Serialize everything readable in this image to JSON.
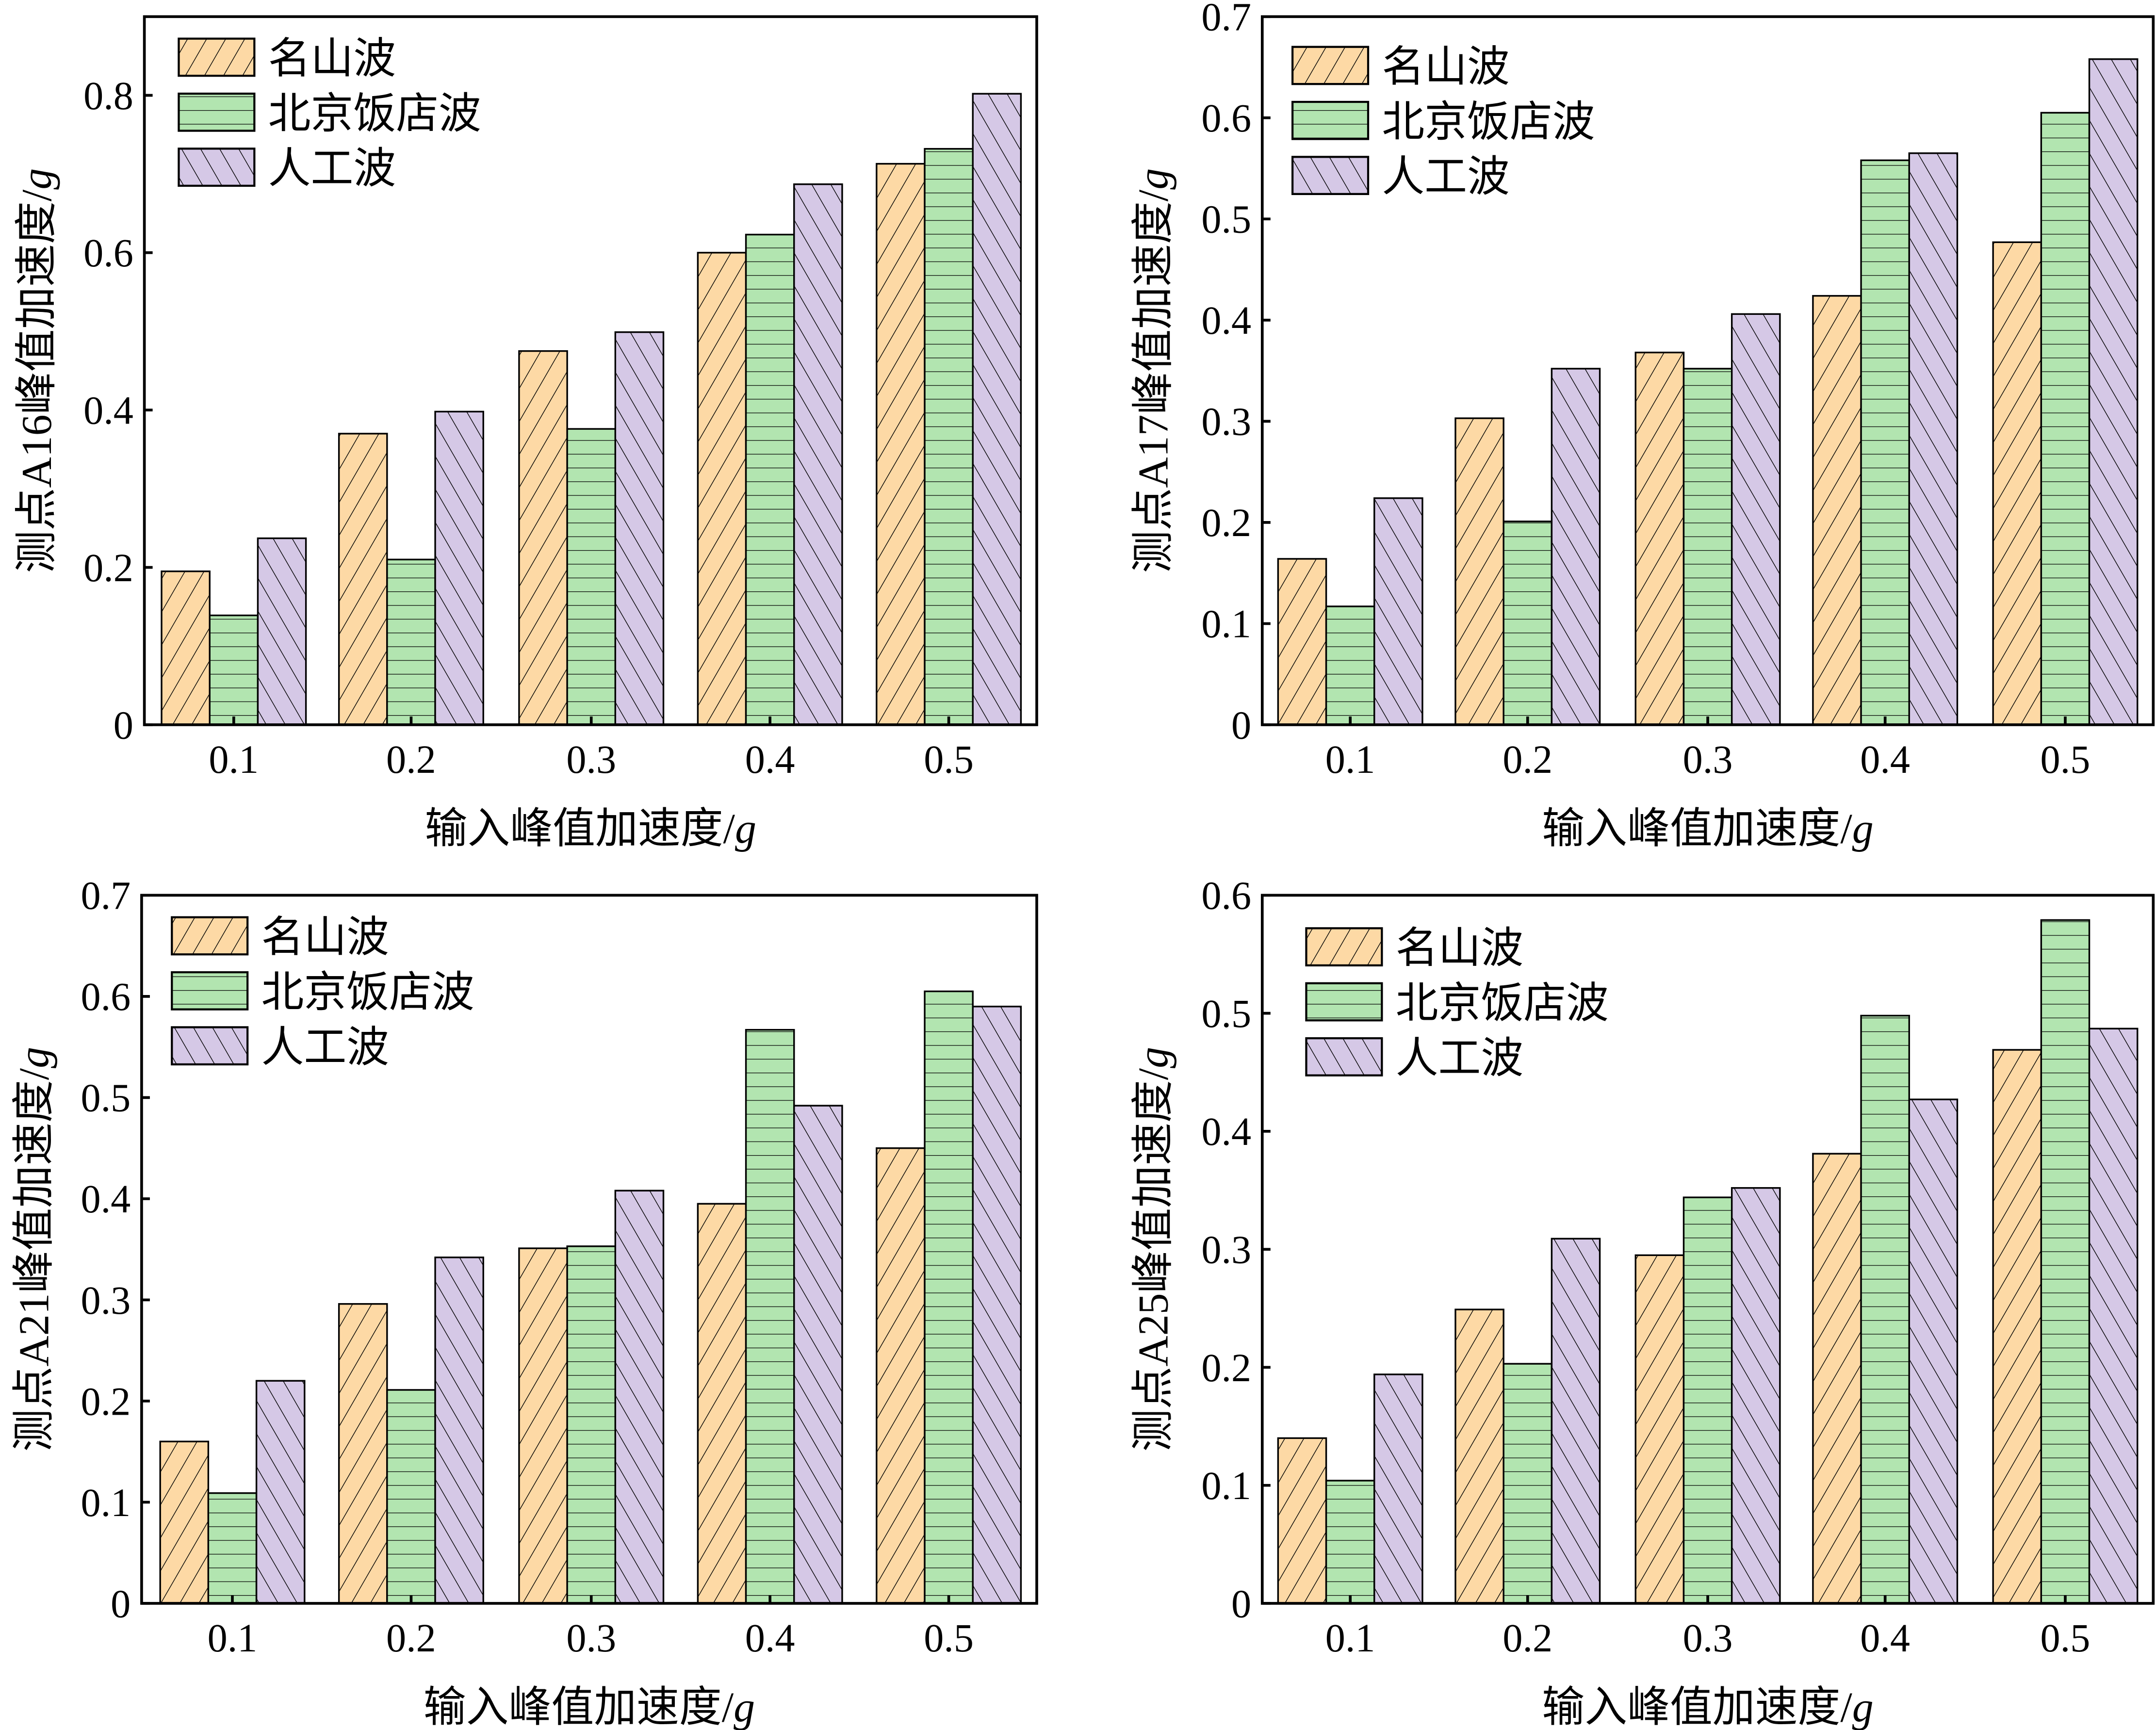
{
  "colors": {
    "名山波": "#FDD9A5",
    "北京饭店波": "#B2E5B0",
    "人工波": "#D5C8E6"
  },
  "chart_data": [
    {
      "type": "bar",
      "ylabel": "测点A16峰值加速度/g",
      "xlabel": "输入峰值加速度/g",
      "categories": [
        "0.1",
        "0.2",
        "0.3",
        "0.4",
        "0.5"
      ],
      "ylim": [
        0,
        0.9
      ],
      "yticks": [
        "0",
        "0.2",
        "0.4",
        "0.6",
        "0.8"
      ],
      "legend_position": "top-left",
      "series": [
        {
          "name": "名山波",
          "values": [
            0.195,
            0.37,
            0.475,
            0.6,
            0.713
          ]
        },
        {
          "name": "北京饭店波",
          "values": [
            0.139,
            0.21,
            0.376,
            0.623,
            0.732
          ]
        },
        {
          "name": "人工波",
          "values": [
            0.237,
            0.398,
            0.499,
            0.687,
            0.802
          ]
        }
      ]
    },
    {
      "type": "bar",
      "ylabel": "测点A17峰值加速度/g",
      "xlabel": "输入峰值加速度/g",
      "categories": [
        "0.1",
        "0.2",
        "0.3",
        "0.4",
        "0.5"
      ],
      "ylim": [
        0,
        0.7
      ],
      "yticks": [
        "0",
        "0.1",
        "0.2",
        "0.3",
        "0.4",
        "0.5",
        "0.6",
        "0.7"
      ],
      "legend_position": "top-left",
      "series": [
        {
          "name": "名山波",
          "values": [
            0.164,
            0.303,
            0.368,
            0.424,
            0.477
          ]
        },
        {
          "name": "北京饭店波",
          "values": [
            0.117,
            0.201,
            0.352,
            0.558,
            0.605
          ]
        },
        {
          "name": "人工波",
          "values": [
            0.224,
            0.352,
            0.406,
            0.565,
            0.658
          ]
        }
      ]
    },
    {
      "type": "bar",
      "ylabel": "测点A21峰值加速度/g",
      "xlabel": "输入峰值加速度/g",
      "categories": [
        "0.1",
        "0.2",
        "0.3",
        "0.4",
        "0.5"
      ],
      "ylim": [
        0,
        0.7
      ],
      "yticks": [
        "0",
        "0.1",
        "0.2",
        "0.3",
        "0.4",
        "0.5",
        "0.6",
        "0.7"
      ],
      "legend_position": "top-left",
      "series": [
        {
          "name": "名山波",
          "values": [
            0.16,
            0.296,
            0.351,
            0.395,
            0.45
          ]
        },
        {
          "name": "北京饭店波",
          "values": [
            0.109,
            0.211,
            0.353,
            0.567,
            0.605
          ]
        },
        {
          "name": "人工波",
          "values": [
            0.22,
            0.342,
            0.408,
            0.492,
            0.59
          ]
        }
      ]
    },
    {
      "type": "bar",
      "ylabel": "测点A25峰值加速度/g",
      "xlabel": "输入峰值加速度/g",
      "categories": [
        "0.1",
        "0.2",
        "0.3",
        "0.4",
        "0.5"
      ],
      "ylim": [
        0,
        0.6
      ],
      "yticks": [
        "0",
        "0.1",
        "0.2",
        "0.3",
        "0.4",
        "0.5",
        "0.6"
      ],
      "legend_position": "top-left",
      "series": [
        {
          "name": "名山波",
          "values": [
            0.14,
            0.249,
            0.295,
            0.381,
            0.469
          ]
        },
        {
          "name": "北京饭店波",
          "values": [
            0.104,
            0.203,
            0.344,
            0.498,
            0.579
          ]
        },
        {
          "name": "人工波",
          "values": [
            0.194,
            0.309,
            0.352,
            0.427,
            0.487
          ]
        }
      ]
    }
  ]
}
